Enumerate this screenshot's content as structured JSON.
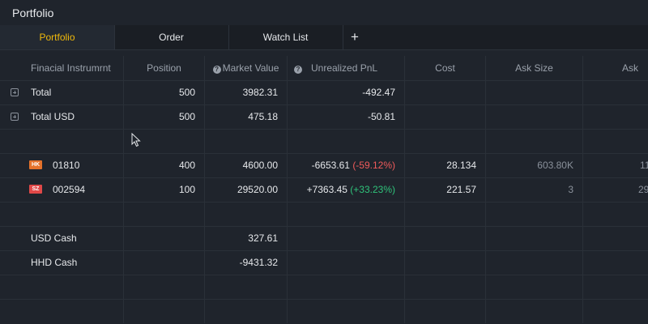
{
  "window": {
    "title": "Portfolio"
  },
  "tabs": [
    {
      "label": "Portfolio",
      "active": true
    },
    {
      "label": "Order",
      "active": false
    },
    {
      "label": "Watch List",
      "active": false
    }
  ],
  "add_tab_symbol": "+",
  "columns": [
    "Finacial Instrumrnt",
    "Position",
    "Market Value",
    "Unrealized PnL",
    "Cost",
    "Ask Size",
    "Ask"
  ],
  "rows": {
    "total": {
      "name": "Total",
      "position": "500",
      "market_value": "3982.31",
      "pnl": "-492.47"
    },
    "total_usd": {
      "name": "Total USD",
      "position": "500",
      "market_value": "475.18",
      "pnl": "-50.81"
    },
    "inst1": {
      "market": "HK",
      "code": "01810",
      "position": "400",
      "market_value": "4600.00",
      "pnl": "-6653.61",
      "pnl_pct": "(-59.12%)",
      "cost": "28.134",
      "ask_size": "603.80K",
      "ask": "11"
    },
    "inst2": {
      "market": "SZ",
      "code": "002594",
      "position": "100",
      "market_value": "29520.00",
      "pnl": "+7363.45",
      "pnl_pct": "(+33.23%)",
      "cost": "221.57",
      "ask_size": "3",
      "ask": "29"
    },
    "usd_cash": {
      "name": "USD Cash",
      "market_value": "327.61"
    },
    "hhd_cash": {
      "name": "HHD Cash",
      "market_value": "-9431.32"
    }
  },
  "colors": {
    "accent": "#f0b90b",
    "loss": "#f05b5b",
    "gain": "#2fc27a",
    "hk_badge": "#e5722b",
    "sz_badge": "#e04848"
  },
  "icons": {
    "help": "question-circle-icon",
    "expand": "plus-square-icon"
  }
}
